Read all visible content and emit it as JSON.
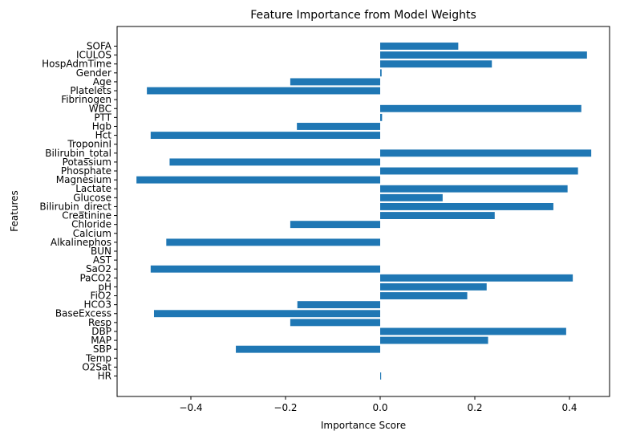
{
  "chart_data": {
    "type": "bar",
    "orientation": "horizontal",
    "title": "Feature Importance from Model Weights",
    "xlabel": "Importance Score",
    "ylabel": "Features",
    "xlim": [
      -0.55,
      0.48
    ],
    "xticks": [
      -0.4,
      -0.2,
      0.0,
      0.2,
      0.4
    ],
    "xtick_labels": [
      "−0.4",
      "−0.2",
      "0.0",
      "0.2",
      "0.4"
    ],
    "grid": false,
    "bar_color": "#1f77b4",
    "categories": [
      "HR",
      "O2Sat",
      "Temp",
      "SBP",
      "MAP",
      "DBP",
      "Resp",
      "BaseExcess",
      "HCO3",
      "FiO2",
      "pH",
      "PaCO2",
      "SaO2",
      "AST",
      "BUN",
      "Alkalinephos",
      "Calcium",
      "Chloride",
      "Creatinine",
      "Bilirubin_direct",
      "Glucose",
      "Lactate",
      "Magnesium",
      "Phosphate",
      "Potassium",
      "Bilirubin_total",
      "TroponinI",
      "Hct",
      "Hgb",
      "PTT",
      "WBC",
      "Fibrinogen",
      "Platelets",
      "Age",
      "Gender",
      "HospAdmTime",
      "ICULOS",
      "SOFA"
    ],
    "values": [
      0.002,
      0.0,
      0.0,
      -0.305,
      0.228,
      0.393,
      -0.19,
      -0.478,
      -0.175,
      0.184,
      0.225,
      0.407,
      -0.485,
      0.0,
      0.0,
      -0.452,
      0.0,
      -0.19,
      0.242,
      0.366,
      0.132,
      0.396,
      -0.515,
      0.418,
      -0.445,
      0.446,
      0.0,
      -0.485,
      -0.176,
      0.004,
      0.425,
      0.0,
      -0.493,
      -0.19,
      0.003,
      0.236,
      0.437,
      0.165
    ]
  }
}
